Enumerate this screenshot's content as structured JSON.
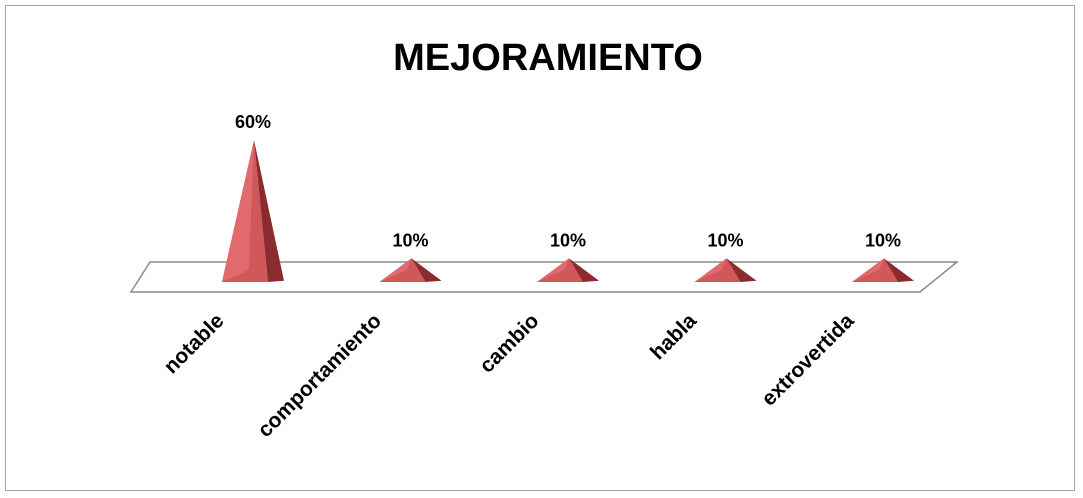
{
  "chart_data": {
    "type": "bar",
    "shape": "pyramid-3d",
    "title": "MEJORAMIENTO",
    "categories": [
      "notable",
      "comportamiento",
      "cambio",
      "habla",
      "extrovertida"
    ],
    "values": [
      60,
      10,
      10,
      10,
      10
    ],
    "data_labels": [
      "60%",
      "10%",
      "10%",
      "10%",
      "10%"
    ],
    "unit": "%",
    "ylim": [
      0,
      60
    ],
    "grid": false,
    "legend": "none",
    "colors": {
      "bar_front": "#d0575a",
      "bar_side": "#8b2b2e",
      "floor_stroke": "#8c8c8c",
      "border": "#a6a6a6"
    }
  }
}
